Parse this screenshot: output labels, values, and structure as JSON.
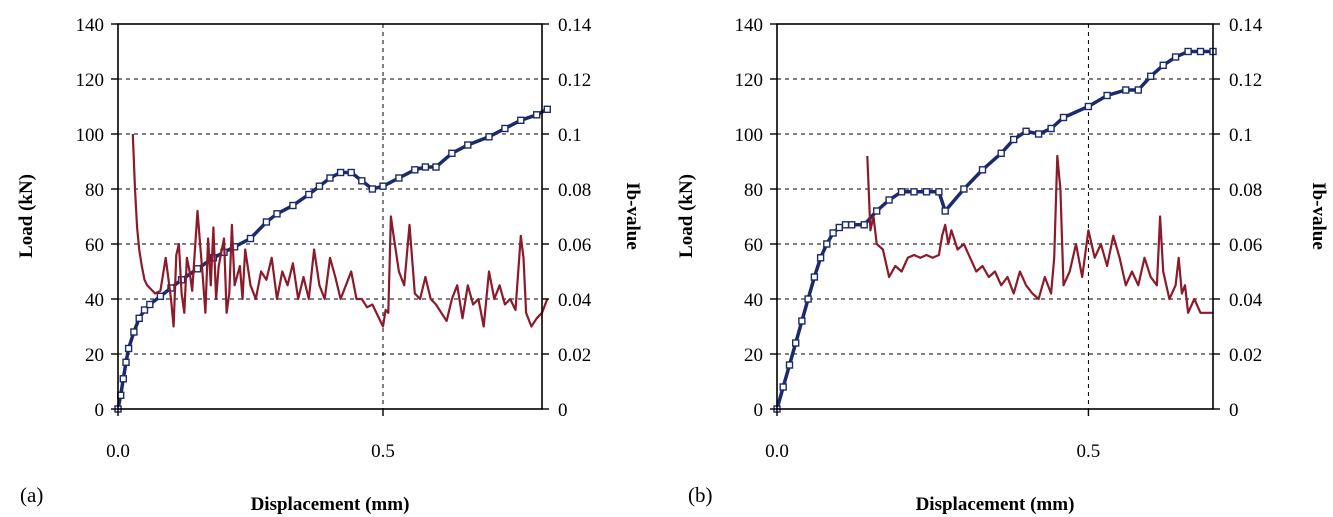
{
  "chart_data": [
    {
      "type": "line",
      "panel_label": "(a)",
      "xlabel": "Displacement (mm)",
      "ylabel": "Load (kN)",
      "y2label": "Ib-value",
      "xlim": [
        0,
        0.8
      ],
      "ylim": [
        0,
        140
      ],
      "y2lim": [
        0,
        0.14
      ],
      "x_ticks": [
        {
          "v": 0,
          "label": "0.0"
        },
        {
          "v": 0.5,
          "label": "0.5"
        }
      ],
      "y_ticks": [
        0,
        20,
        40,
        60,
        80,
        100,
        120,
        140
      ],
      "y2_ticks": [
        {
          "v": 0,
          "label": "0"
        },
        {
          "v": 0.02,
          "label": "0.02"
        },
        {
          "v": 0.04,
          "label": "0.04"
        },
        {
          "v": 0.06,
          "label": "0.06"
        },
        {
          "v": 0.08,
          "label": "0.08"
        },
        {
          "v": 0.1,
          "label": "0.1"
        },
        {
          "v": 0.12,
          "label": "0.12"
        },
        {
          "v": 0.14,
          "label": "0.14"
        }
      ],
      "grid": "dashed",
      "series": [
        {
          "axis": "left",
          "style": "markers",
          "color": "#1b2a6b",
          "x": [
            0.0,
            0.005,
            0.01,
            0.015,
            0.02,
            0.03,
            0.04,
            0.05,
            0.06,
            0.08,
            0.1,
            0.12,
            0.15,
            0.18,
            0.2,
            0.22,
            0.25,
            0.28,
            0.3,
            0.33,
            0.36,
            0.38,
            0.4,
            0.42,
            0.44,
            0.46,
            0.48,
            0.5,
            0.53,
            0.56,
            0.58,
            0.6,
            0.63,
            0.66,
            0.7,
            0.73,
            0.76,
            0.79,
            0.81
          ],
          "y": [
            0,
            5,
            11,
            17,
            22,
            28,
            33,
            36,
            38,
            41,
            44,
            47,
            51,
            55,
            57,
            59,
            62,
            68,
            71,
            74,
            78,
            81,
            84,
            86,
            86,
            83,
            80,
            81,
            84,
            87,
            88,
            88,
            93,
            96,
            99,
            102,
            105,
            107,
            109
          ]
        },
        {
          "axis": "right",
          "style": "line",
          "color": "#8b1a2b",
          "x": [
            0.028,
            0.032,
            0.036,
            0.04,
            0.045,
            0.05,
            0.055,
            0.06,
            0.07,
            0.08,
            0.09,
            0.1,
            0.105,
            0.11,
            0.115,
            0.12,
            0.125,
            0.13,
            0.135,
            0.14,
            0.15,
            0.155,
            0.16,
            0.165,
            0.17,
            0.175,
            0.18,
            0.185,
            0.19,
            0.2,
            0.205,
            0.21,
            0.215,
            0.22,
            0.23,
            0.235,
            0.24,
            0.25,
            0.26,
            0.27,
            0.28,
            0.29,
            0.3,
            0.31,
            0.32,
            0.33,
            0.34,
            0.35,
            0.36,
            0.37,
            0.38,
            0.39,
            0.4,
            0.41,
            0.42,
            0.43,
            0.44,
            0.45,
            0.46,
            0.47,
            0.48,
            0.49,
            0.5,
            0.505,
            0.51,
            0.515,
            0.52,
            0.53,
            0.54,
            0.55,
            0.56,
            0.57,
            0.58,
            0.59,
            0.6,
            0.61,
            0.62,
            0.63,
            0.64,
            0.65,
            0.66,
            0.67,
            0.68,
            0.69,
            0.7,
            0.71,
            0.72,
            0.73,
            0.74,
            0.75,
            0.76,
            0.765,
            0.77,
            0.78,
            0.79,
            0.8,
            0.81
          ],
          "y": [
            0.1,
            0.08,
            0.066,
            0.058,
            0.052,
            0.047,
            0.045,
            0.044,
            0.042,
            0.043,
            0.055,
            0.04,
            0.03,
            0.056,
            0.06,
            0.042,
            0.035,
            0.055,
            0.05,
            0.043,
            0.072,
            0.06,
            0.048,
            0.035,
            0.062,
            0.045,
            0.066,
            0.04,
            0.052,
            0.062,
            0.035,
            0.042,
            0.067,
            0.045,
            0.052,
            0.04,
            0.058,
            0.045,
            0.04,
            0.05,
            0.047,
            0.055,
            0.04,
            0.05,
            0.045,
            0.053,
            0.04,
            0.048,
            0.04,
            0.058,
            0.045,
            0.04,
            0.055,
            0.048,
            0.04,
            0.045,
            0.05,
            0.04,
            0.04,
            0.037,
            0.038,
            0.034,
            0.03,
            0.036,
            0.035,
            0.07,
            0.063,
            0.05,
            0.045,
            0.067,
            0.042,
            0.04,
            0.048,
            0.04,
            0.038,
            0.035,
            0.032,
            0.04,
            0.045,
            0.033,
            0.045,
            0.038,
            0.04,
            0.03,
            0.05,
            0.04,
            0.045,
            0.038,
            0.04,
            0.036,
            0.063,
            0.055,
            0.035,
            0.03,
            0.033,
            0.035,
            0.04
          ]
        }
      ]
    },
    {
      "type": "line",
      "panel_label": "(b)",
      "xlabel": "Displacement (mm)",
      "ylabel": "Load (kN)",
      "y2label": "Ib-value",
      "xlim": [
        0,
        0.7
      ],
      "ylim": [
        0,
        140
      ],
      "y2lim": [
        0,
        0.14
      ],
      "x_ticks": [
        {
          "v": 0,
          "label": "0.0"
        },
        {
          "v": 0.5,
          "label": "0.5"
        }
      ],
      "y_ticks": [
        0,
        20,
        40,
        60,
        80,
        100,
        120,
        140
      ],
      "y2_ticks": [
        {
          "v": 0,
          "label": "0"
        },
        {
          "v": 0.02,
          "label": "0.02"
        },
        {
          "v": 0.04,
          "label": "0.04"
        },
        {
          "v": 0.06,
          "label": "0.06"
        },
        {
          "v": 0.08,
          "label": "0.08"
        },
        {
          "v": 0.1,
          "label": "0.1"
        },
        {
          "v": 0.12,
          "label": "0.12"
        },
        {
          "v": 0.14,
          "label": "0.14"
        }
      ],
      "grid": "dashed",
      "series": [
        {
          "axis": "left",
          "style": "markers",
          "color": "#1b2a6b",
          "x": [
            0.0,
            0.01,
            0.02,
            0.03,
            0.04,
            0.05,
            0.06,
            0.07,
            0.08,
            0.09,
            0.1,
            0.11,
            0.12,
            0.14,
            0.16,
            0.18,
            0.2,
            0.22,
            0.24,
            0.26,
            0.27,
            0.3,
            0.33,
            0.36,
            0.38,
            0.4,
            0.42,
            0.44,
            0.46,
            0.5,
            0.53,
            0.56,
            0.58,
            0.6,
            0.62,
            0.64,
            0.66,
            0.68,
            0.7
          ],
          "y": [
            0,
            8,
            16,
            24,
            32,
            40,
            48,
            55,
            60,
            64,
            66,
            67,
            67,
            67,
            72,
            76,
            79,
            79,
            79,
            79,
            72,
            80,
            87,
            93,
            98,
            101,
            100,
            102,
            106,
            110,
            114,
            116,
            116,
            121,
            125,
            128,
            130,
            130,
            130
          ]
        },
        {
          "axis": "right",
          "style": "line",
          "color": "#8b1a2b",
          "x": [
            0.145,
            0.15,
            0.155,
            0.16,
            0.17,
            0.18,
            0.19,
            0.2,
            0.21,
            0.22,
            0.23,
            0.24,
            0.25,
            0.26,
            0.265,
            0.27,
            0.275,
            0.28,
            0.29,
            0.3,
            0.31,
            0.32,
            0.33,
            0.34,
            0.35,
            0.36,
            0.37,
            0.38,
            0.39,
            0.4,
            0.41,
            0.42,
            0.43,
            0.44,
            0.445,
            0.45,
            0.455,
            0.46,
            0.47,
            0.48,
            0.49,
            0.5,
            0.51,
            0.52,
            0.53,
            0.54,
            0.55,
            0.56,
            0.57,
            0.58,
            0.59,
            0.6,
            0.61,
            0.615,
            0.62,
            0.63,
            0.64,
            0.645,
            0.65,
            0.655,
            0.66,
            0.67,
            0.68,
            0.69,
            0.7
          ],
          "y": [
            0.092,
            0.065,
            0.07,
            0.06,
            0.058,
            0.048,
            0.052,
            0.05,
            0.055,
            0.056,
            0.055,
            0.056,
            0.055,
            0.056,
            0.063,
            0.067,
            0.06,
            0.065,
            0.058,
            0.06,
            0.055,
            0.05,
            0.052,
            0.048,
            0.05,
            0.045,
            0.048,
            0.042,
            0.05,
            0.045,
            0.042,
            0.04,
            0.048,
            0.042,
            0.055,
            0.092,
            0.08,
            0.045,
            0.05,
            0.06,
            0.048,
            0.065,
            0.055,
            0.06,
            0.052,
            0.063,
            0.055,
            0.045,
            0.05,
            0.045,
            0.055,
            0.048,
            0.045,
            0.07,
            0.05,
            0.04,
            0.045,
            0.055,
            0.042,
            0.045,
            0.035,
            0.04,
            0.035,
            0.035,
            0.035
          ]
        }
      ]
    }
  ]
}
